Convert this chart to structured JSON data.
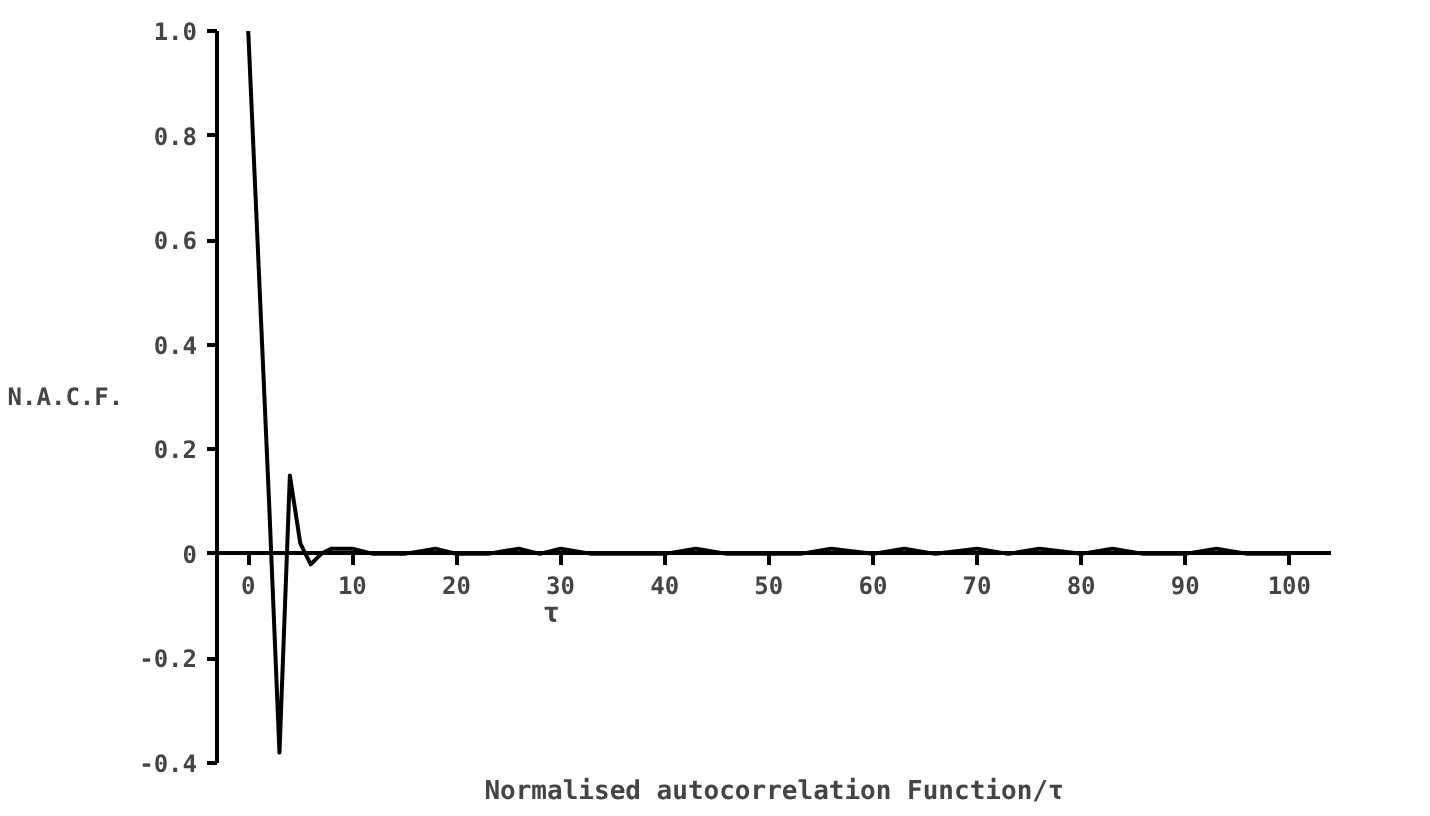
{
  "chart_data": {
    "type": "line",
    "title": "Normalised autocorrelation Function/τ",
    "xlabel": "τ",
    "ylabel": "N.A.C.F.",
    "x": [
      0,
      1,
      2,
      3,
      4,
      5,
      6,
      7,
      8,
      10,
      12,
      15,
      18,
      20,
      23,
      26,
      28,
      30,
      33,
      36,
      40,
      43,
      46,
      50,
      53,
      56,
      60,
      63,
      66,
      70,
      73,
      76,
      80,
      83,
      86,
      90,
      93,
      96,
      100
    ],
    "values": [
      1.0,
      0.55,
      0.1,
      -0.38,
      0.15,
      0.02,
      -0.02,
      0.0,
      0.01,
      0.01,
      0.0,
      0.0,
      0.01,
      0.0,
      0.0,
      0.01,
      0.0,
      0.01,
      0.0,
      0.0,
      0.0,
      0.01,
      0.0,
      0.0,
      0.0,
      0.01,
      0.0,
      0.01,
      0.0,
      0.01,
      0.0,
      0.01,
      0.0,
      0.01,
      0.0,
      0.0,
      0.01,
      0.0,
      0.0
    ],
    "color": "#000000",
    "xlim": [
      -3,
      104
    ],
    "ylim": [
      -0.4,
      1.0
    ],
    "xticks": [
      0,
      10,
      20,
      30,
      40,
      50,
      60,
      70,
      80,
      90,
      100
    ],
    "yticks": [
      -0.4,
      -0.2,
      0,
      0.2,
      0.4,
      0.6,
      0.8,
      {
        "value": 1.0,
        "label": "1.0"
      }
    ],
    "grid": false,
    "line_style": "solid"
  }
}
